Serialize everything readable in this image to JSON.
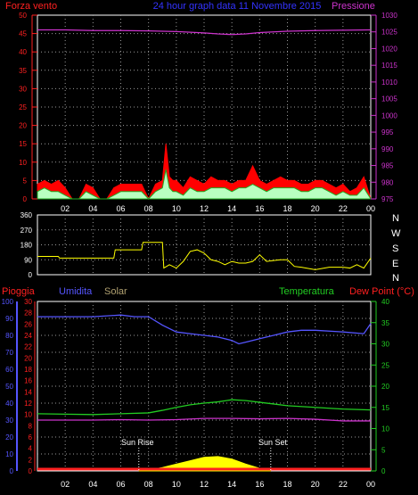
{
  "header": {
    "left_title": "Forza vento",
    "center_title": "24 hour graph data  11 Novembre 2015",
    "right_title": "Pressione"
  },
  "colors": {
    "wind_axis": "#ff2020",
    "pressure": "#cc33cc",
    "title": "#3333ff",
    "frame": "#ffffff",
    "grid": "#9a9a9a",
    "wind_avg": "#ff0000",
    "wind_gust": "#b8ffc0",
    "wind_mid": "#22aa22",
    "direction": "#ffff00",
    "humidity": "#5555ff",
    "temperature": "#22cc22",
    "dew_point": "#cc33cc",
    "solar_fill": "#ffff00",
    "rain": "#ff2020",
    "rain_axis": "#ff2020",
    "humidity_axis": "#5555ff",
    "solar_axis": "#ff5555",
    "temperature_axis": "#22cc22",
    "x_axis": "#ffffff"
  },
  "x_ticks": [
    "02",
    "04",
    "06",
    "08",
    "10",
    "12",
    "14",
    "16",
    "18",
    "20",
    "22",
    "00"
  ],
  "labels": {
    "rain": "Pioggia",
    "humidity": "Umidita",
    "solar": "Solar",
    "temperature": "Temperatura",
    "dew_point": "Dew Point (°C)",
    "sunrise": "Sun Rise",
    "sunset": "Sun Set"
  },
  "compass": [
    "N",
    "W",
    "S",
    "E",
    "N"
  ],
  "chart_data": [
    {
      "type": "area",
      "title": "24 hour graph data  11 Novembre 2015",
      "xlabel": "",
      "ylabel_left": "Forza vento",
      "ylabel_right": "Pressione",
      "x_range_hours": [
        0,
        24
      ],
      "ylim_left": [
        0,
        50
      ],
      "ylim_right": [
        975,
        1030
      ],
      "yticks_left": [
        0,
        5,
        10,
        15,
        20,
        25,
        30,
        35,
        40,
        45,
        50
      ],
      "yticks_right": [
        975,
        980,
        985,
        990,
        995,
        1000,
        1005,
        1010,
        1015,
        1020,
        1025,
        1030
      ],
      "grid": true,
      "series": [
        {
          "name": "Pressione",
          "axis": "right",
          "x": [
            0,
            2,
            4,
            6,
            8,
            10,
            12,
            13,
            14,
            15,
            16,
            18,
            20,
            22,
            24
          ],
          "values": [
            1025.6,
            1025.6,
            1025.4,
            1025.4,
            1025.3,
            1025.1,
            1024.7,
            1024.4,
            1024.2,
            1024.4,
            1024.8,
            1025.2,
            1025.4,
            1025.5,
            1025.6
          ]
        },
        {
          "name": "wind avg",
          "axis": "left",
          "x": [
            0,
            0.5,
            1,
            1.5,
            2,
            2.5,
            3,
            3.5,
            4,
            4.5,
            5,
            5.5,
            6,
            6.5,
            7,
            7.5,
            8,
            8.5,
            9,
            9.25,
            9.5,
            9.75,
            10,
            10.5,
            11,
            11.5,
            12,
            12.5,
            13,
            13.5,
            14,
            14.5,
            15,
            15.5,
            16,
            16.5,
            17,
            17.5,
            18,
            18.5,
            19,
            19.5,
            20,
            20.5,
            21,
            21.5,
            22,
            22.5,
            23,
            23.5,
            24
          ],
          "values": [
            4,
            5,
            4,
            5,
            3,
            0,
            0,
            4,
            3,
            0,
            0,
            3,
            4,
            4,
            4,
            4,
            0,
            4,
            5,
            15,
            6,
            5,
            5,
            3,
            6,
            5,
            4,
            6,
            5,
            5,
            4,
            5,
            5,
            9,
            5,
            4,
            5,
            6,
            5,
            5,
            4,
            4,
            5,
            5,
            4,
            3,
            4,
            2,
            3,
            6,
            0
          ]
        },
        {
          "name": "wind gust",
          "axis": "left",
          "x": [
            0,
            0.5,
            1,
            1.5,
            2,
            2.5,
            3,
            3.5,
            4,
            4.5,
            5,
            5.5,
            6,
            6.5,
            7,
            7.5,
            8,
            8.5,
            9,
            9.25,
            9.5,
            9.75,
            10,
            10.5,
            11,
            11.5,
            12,
            12.5,
            13,
            13.5,
            14,
            14.5,
            15,
            15.5,
            16,
            16.5,
            17,
            17.5,
            18,
            18.5,
            19,
            19.5,
            20,
            20.5,
            21,
            21.5,
            22,
            22.5,
            23,
            23.5,
            24
          ],
          "values": [
            2,
            3,
            2,
            2,
            1,
            0,
            0,
            2,
            1,
            0,
            0,
            1,
            2,
            2,
            2,
            2,
            0,
            2,
            3,
            8,
            3,
            2,
            2,
            1,
            3,
            2,
            2,
            3,
            3,
            3,
            2,
            3,
            3,
            4,
            3,
            2,
            3,
            3,
            3,
            3,
            2,
            2,
            3,
            3,
            2,
            1,
            2,
            1,
            1,
            3,
            0
          ]
        }
      ]
    },
    {
      "type": "line",
      "title": "",
      "ylabel": "",
      "ylim": [
        0,
        360
      ],
      "yticks": [
        0,
        90,
        180,
        270,
        360
      ],
      "series": [
        {
          "name": "direction",
          "x": [
            0,
            1.5,
            1.6,
            5.5,
            5.6,
            7.5,
            7.6,
            9,
            9.1,
            9.5,
            10,
            10.5,
            11,
            11.5,
            12,
            12.5,
            13,
            13.5,
            14,
            14.5,
            15,
            15.5,
            16,
            16.5,
            17,
            17.5,
            18,
            18.5,
            19,
            20,
            21,
            22,
            22.5,
            23,
            23.5,
            24
          ],
          "values": [
            110,
            110,
            100,
            100,
            150,
            150,
            195,
            195,
            40,
            60,
            40,
            80,
            140,
            150,
            130,
            90,
            80,
            60,
            80,
            70,
            70,
            80,
            120,
            80,
            85,
            90,
            90,
            50,
            45,
            30,
            45,
            45,
            40,
            60,
            40,
            100
          ]
        }
      ]
    },
    {
      "type": "line",
      "title": "",
      "ylim_humidity": [
        0,
        100
      ],
      "ylim_rain": [
        0,
        30
      ],
      "ylim_temperature": [
        0,
        40
      ],
      "yticks_humidity": [
        0,
        10,
        20,
        30,
        40,
        50,
        60,
        70,
        80,
        90,
        100
      ],
      "yticks_rain": [
        0,
        2,
        4,
        6,
        8,
        10,
        12,
        14,
        16,
        18,
        20,
        22,
        24,
        26,
        28,
        30
      ],
      "yticks_temperature": [
        0,
        5,
        10,
        15,
        20,
        25,
        30,
        35,
        40
      ],
      "sunrise_hour": 7.3,
      "sunset_hour": 16.8,
      "series": [
        {
          "name": "Umidita",
          "axis": "humidity",
          "x": [
            0,
            2,
            4,
            6,
            7,
            8,
            9,
            10,
            11,
            12,
            13,
            14,
            14.5,
            15,
            16,
            17,
            18,
            19,
            20,
            22,
            23.5,
            24
          ],
          "values": [
            91,
            91,
            91,
            92,
            91,
            91,
            86,
            82,
            81,
            80,
            79,
            77,
            75,
            76,
            78,
            80,
            82,
            83,
            83,
            82,
            81,
            87
          ]
        },
        {
          "name": "Temperatura",
          "axis": "temperature",
          "x": [
            0,
            2,
            4,
            6,
            8,
            9,
            10,
            11,
            12,
            13,
            14,
            15,
            16,
            17,
            18,
            20,
            22,
            24
          ],
          "values": [
            13.5,
            13.4,
            13.3,
            13.5,
            13.7,
            14.3,
            15.0,
            15.6,
            16.0,
            16.3,
            16.8,
            16.6,
            16.2,
            15.8,
            15.4,
            15.0,
            14.6,
            14.4
          ]
        },
        {
          "name": "Dew Point",
          "axis": "temperature",
          "x": [
            0,
            2,
            4,
            6,
            8,
            10,
            12,
            14,
            16,
            18,
            20,
            22,
            24
          ],
          "values": [
            12.0,
            12.0,
            12.0,
            12.1,
            12.0,
            12.1,
            12.4,
            12.4,
            12.3,
            12.4,
            12.2,
            11.8,
            11.8
          ]
        },
        {
          "name": "Pioggia",
          "axis": "rain",
          "x": [
            0,
            24
          ],
          "values": [
            0,
            0
          ]
        },
        {
          "name": "Solar",
          "axis": "humidity_scale",
          "x": [
            7.3,
            8,
            9,
            10,
            11,
            12,
            13,
            14,
            15,
            16,
            16.8
          ],
          "values": [
            0,
            0.5,
            2,
            4,
            6,
            8,
            8.5,
            7,
            4,
            1.5,
            0
          ]
        }
      ]
    }
  ]
}
